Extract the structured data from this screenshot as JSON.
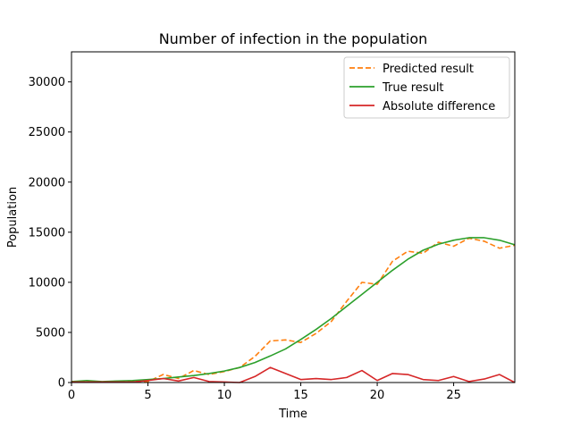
{
  "chart_data": {
    "type": "line",
    "title": "Number of infection in the population",
    "xlabel": "Time",
    "ylabel": "Population",
    "xlim": [
      0,
      29
    ],
    "ylim": [
      0,
      33000
    ],
    "xticks": [
      0,
      5,
      10,
      15,
      20,
      25
    ],
    "yticks": [
      0,
      5000,
      10000,
      15000,
      20000,
      25000,
      30000
    ],
    "grid": false,
    "legend_position": "upper right",
    "x": [
      0,
      1,
      2,
      3,
      4,
      5,
      6,
      7,
      8,
      9,
      10,
      11,
      12,
      13,
      14,
      15,
      16,
      17,
      18,
      19,
      20,
      21,
      22,
      23,
      24,
      25,
      26,
      27,
      28,
      29
    ],
    "series": [
      {
        "name": "Predicted result",
        "color": "#ff7f0e",
        "dash": "dashed",
        "values": [
          50,
          150,
          50,
          100,
          150,
          100,
          800,
          400,
          1200,
          800,
          1100,
          1500,
          2600,
          4150,
          4250,
          4000,
          4900,
          6100,
          8100,
          10000,
          9800,
          12100,
          13100,
          12900,
          14000,
          13600,
          14400,
          14100,
          13400,
          13700
        ]
      },
      {
        "name": "True result",
        "color": "#2ca02c",
        "dash": "solid",
        "values": [
          100,
          200,
          100,
          150,
          200,
          300,
          400,
          550,
          700,
          900,
          1150,
          1500,
          2000,
          2650,
          3350,
          4300,
          5300,
          6400,
          7600,
          8800,
          10000,
          11200,
          12300,
          13200,
          13800,
          14200,
          14450,
          14450,
          14200,
          13750
        ]
      },
      {
        "name": "Absolute difference",
        "color": "#d62728",
        "dash": "solid",
        "values": [
          50,
          50,
          50,
          50,
          50,
          200,
          400,
          150,
          500,
          100,
          50,
          0,
          600,
          1500,
          900,
          300,
          400,
          300,
          500,
          1200,
          200,
          900,
          800,
          300,
          200,
          600,
          100,
          350,
          800,
          0
        ]
      }
    ]
  }
}
